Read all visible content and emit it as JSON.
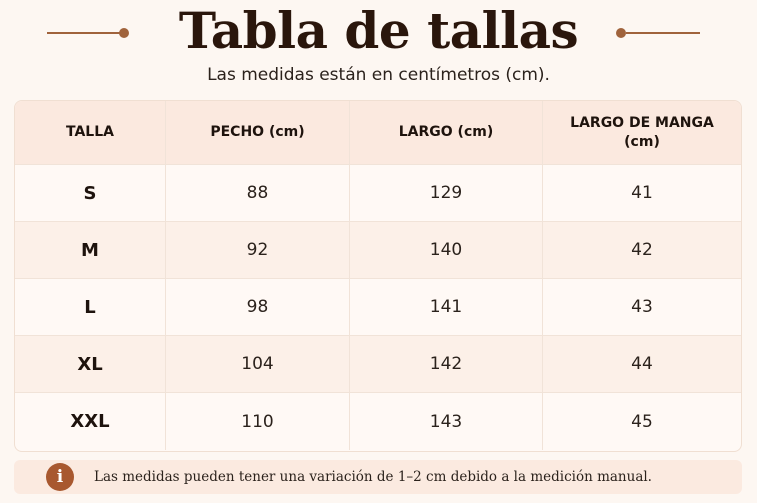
{
  "header": {
    "title": "Tabla de tallas",
    "subtitle": "Las medidas están en centímetros (cm)."
  },
  "table": {
    "headers": [
      "TALLA",
      "PECHO (cm)",
      "LARGO (cm)",
      "LARGO DE MANGA (cm)"
    ],
    "rows": [
      [
        "S",
        "88",
        "129",
        "41"
      ],
      [
        "M",
        "92",
        "140",
        "42"
      ],
      [
        "L",
        "98",
        "141",
        "43"
      ],
      [
        "XL",
        "104",
        "142",
        "44"
      ],
      [
        "XXL",
        "110",
        "143",
        "45"
      ]
    ]
  },
  "note": {
    "icon": "info-icon",
    "icon_glyph": "i",
    "text": "Las medidas pueden tener una variación de 1–2 cm debido a la medición manual."
  },
  "colors": {
    "background": "#fdf7f2",
    "accent": "#a0633c",
    "header_row": "#fbe9df",
    "info_icon": "#a8582f"
  }
}
